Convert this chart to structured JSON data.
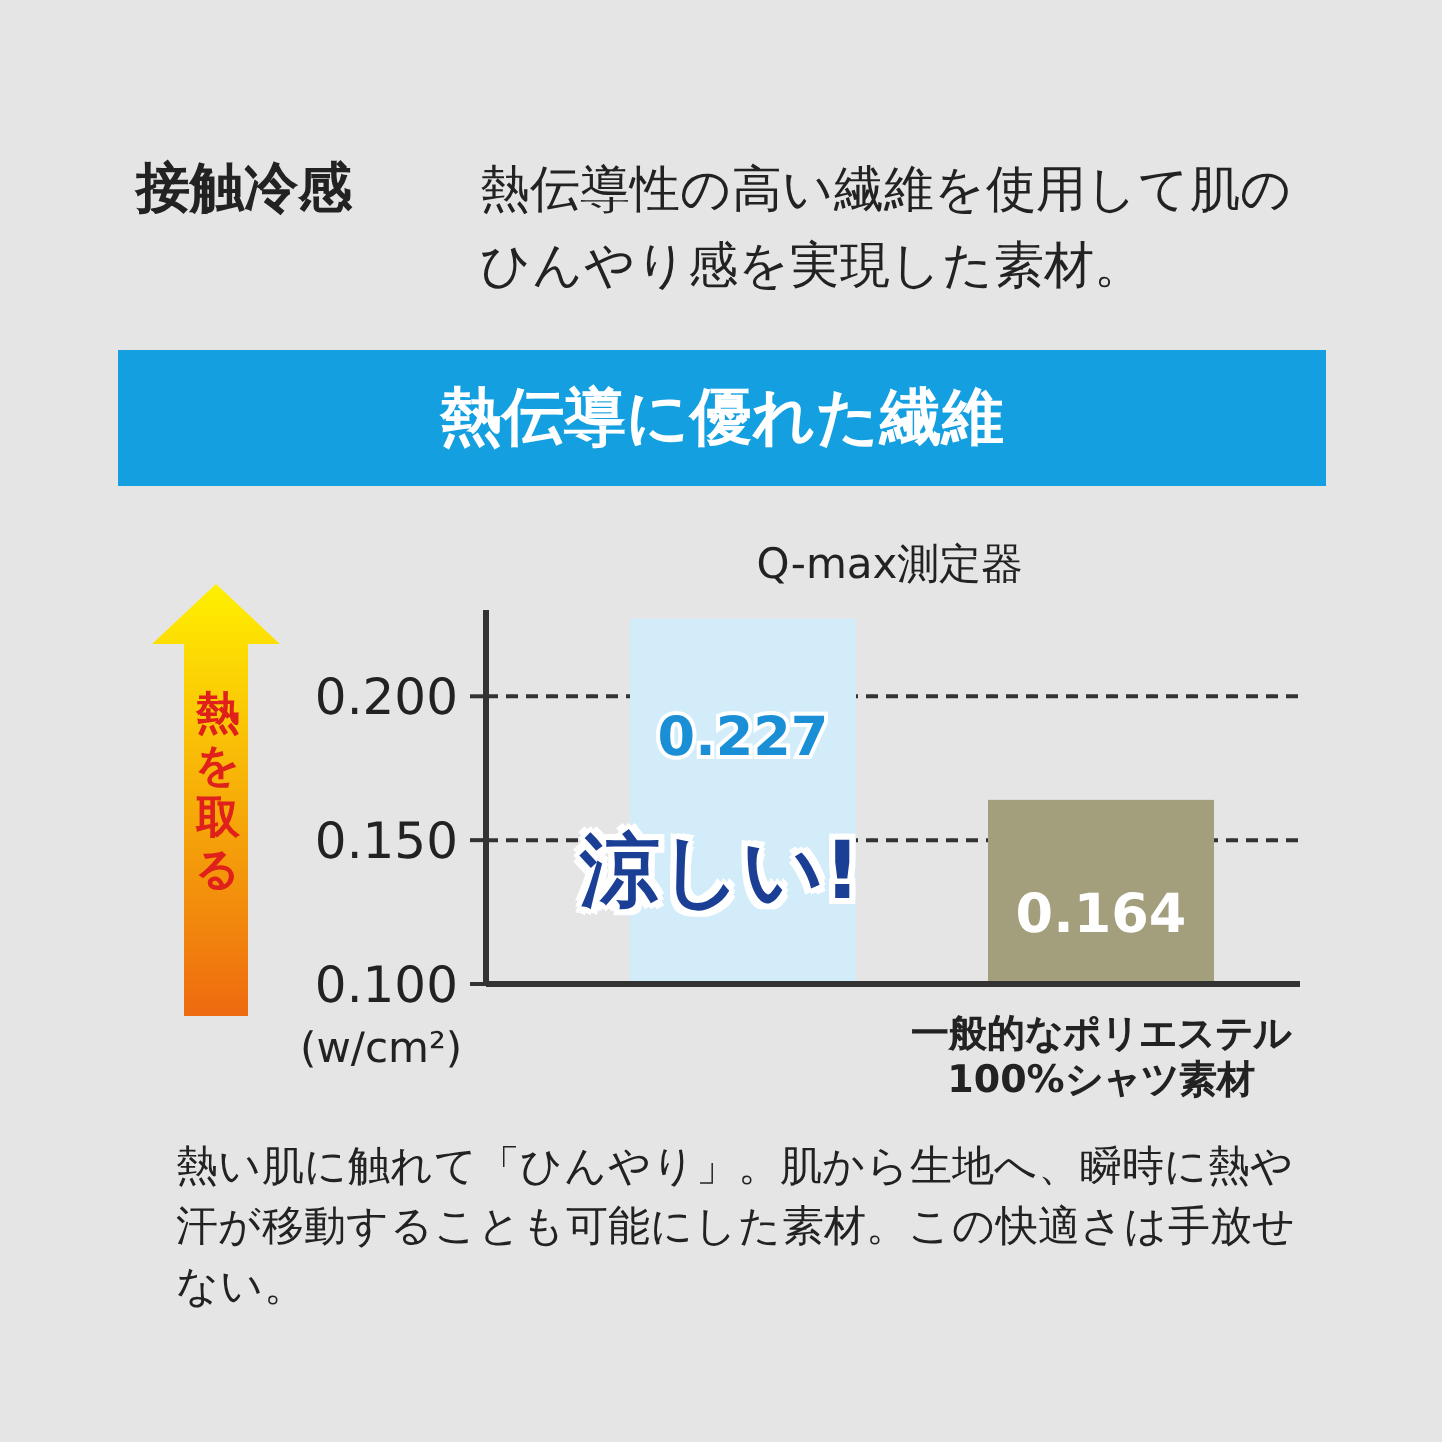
{
  "chart_data": {
    "type": "bar",
    "title": "接触冷感",
    "subtitle": "熱伝導性の高い繊維を使用して肌のひんやり感を実現した素材。",
    "ylabel": "(w/cm²)",
    "categories": [
      null,
      "一般的なポリエステル100%シャツ素材"
    ],
    "values": [
      0.227,
      0.164
    ],
    "colors": [
      "#d2ecfa",
      "#a39f7c"
    ],
    "data_labels": true,
    "ylim": [
      0.1,
      0.23
    ],
    "yticks": [
      {
        "value": 0.1,
        "label": "0.100"
      },
      {
        "value": 0.15,
        "label": "0.150"
      },
      {
        "value": 0.2,
        "label": "0.200"
      }
    ],
    "grid": "y",
    "annotations": [
      "熱伝導に優れた繊維",
      "Q-max測定器",
      "熱を取る",
      "涼しい!",
      "熱い肌に触れて「ひんやり」。肌から生地へ、瞬時に熱や汗が移動することも可能にした素材。この快適さは手放せない。"
    ]
  }
}
